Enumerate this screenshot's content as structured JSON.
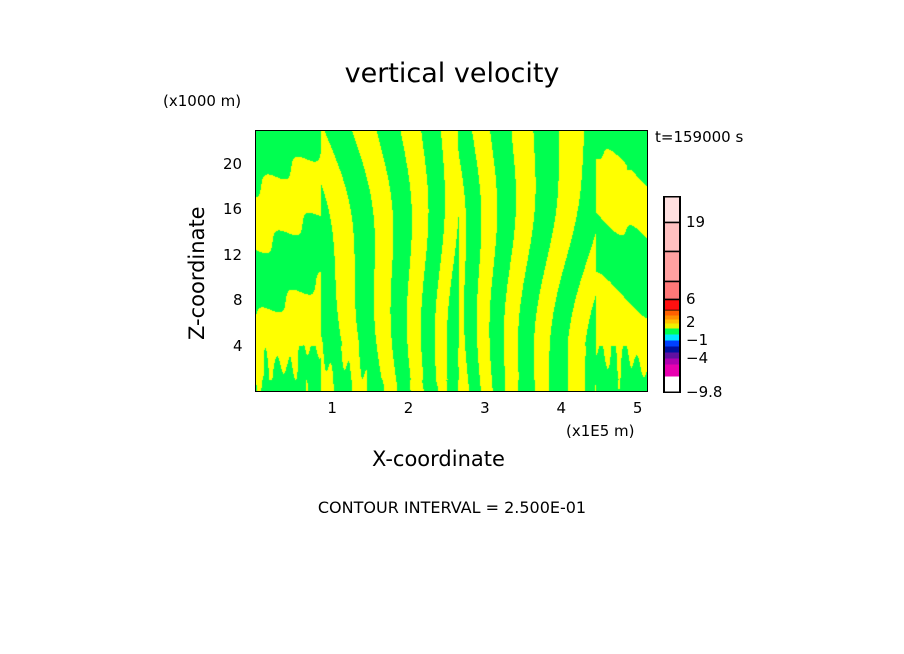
{
  "chart_data": {
    "type": "heatmap",
    "title": "vertical velocity",
    "xlabel": "X-coordinate",
    "ylabel": "Z-coordinate",
    "x_unit": "(x1E5 m)",
    "y_unit": "(x1000 m)",
    "time_label": "t=159000 s",
    "footer": "CONTOUR INTERVAL = 2.500E-01",
    "xlim": [
      0,
      5.12
    ],
    "ylim": [
      0,
      22.9
    ],
    "x_ticks": [
      "1",
      "2",
      "3",
      "4",
      "5"
    ],
    "y_ticks": [
      "4",
      "8",
      "12",
      "16",
      "20"
    ],
    "colorbar": {
      "labels": [
        "19",
        "6",
        "2",
        "−1",
        "−4",
        "−9.8"
      ],
      "colors": [
        "#ffe0e0",
        "#ffc0c0",
        "#ffa0a0",
        "#ff7878",
        "#ff1010",
        "#ff6000",
        "#ff9000",
        "#ffc000",
        "#f0f000",
        "#00ff50",
        "#00e8ff",
        "#0040ff",
        "#0010a0",
        "#6010a0",
        "#b000b0",
        "#e800b0"
      ]
    },
    "field_colors": {
      "positive": "#ffff00",
      "negative": "#00ff50"
    }
  }
}
